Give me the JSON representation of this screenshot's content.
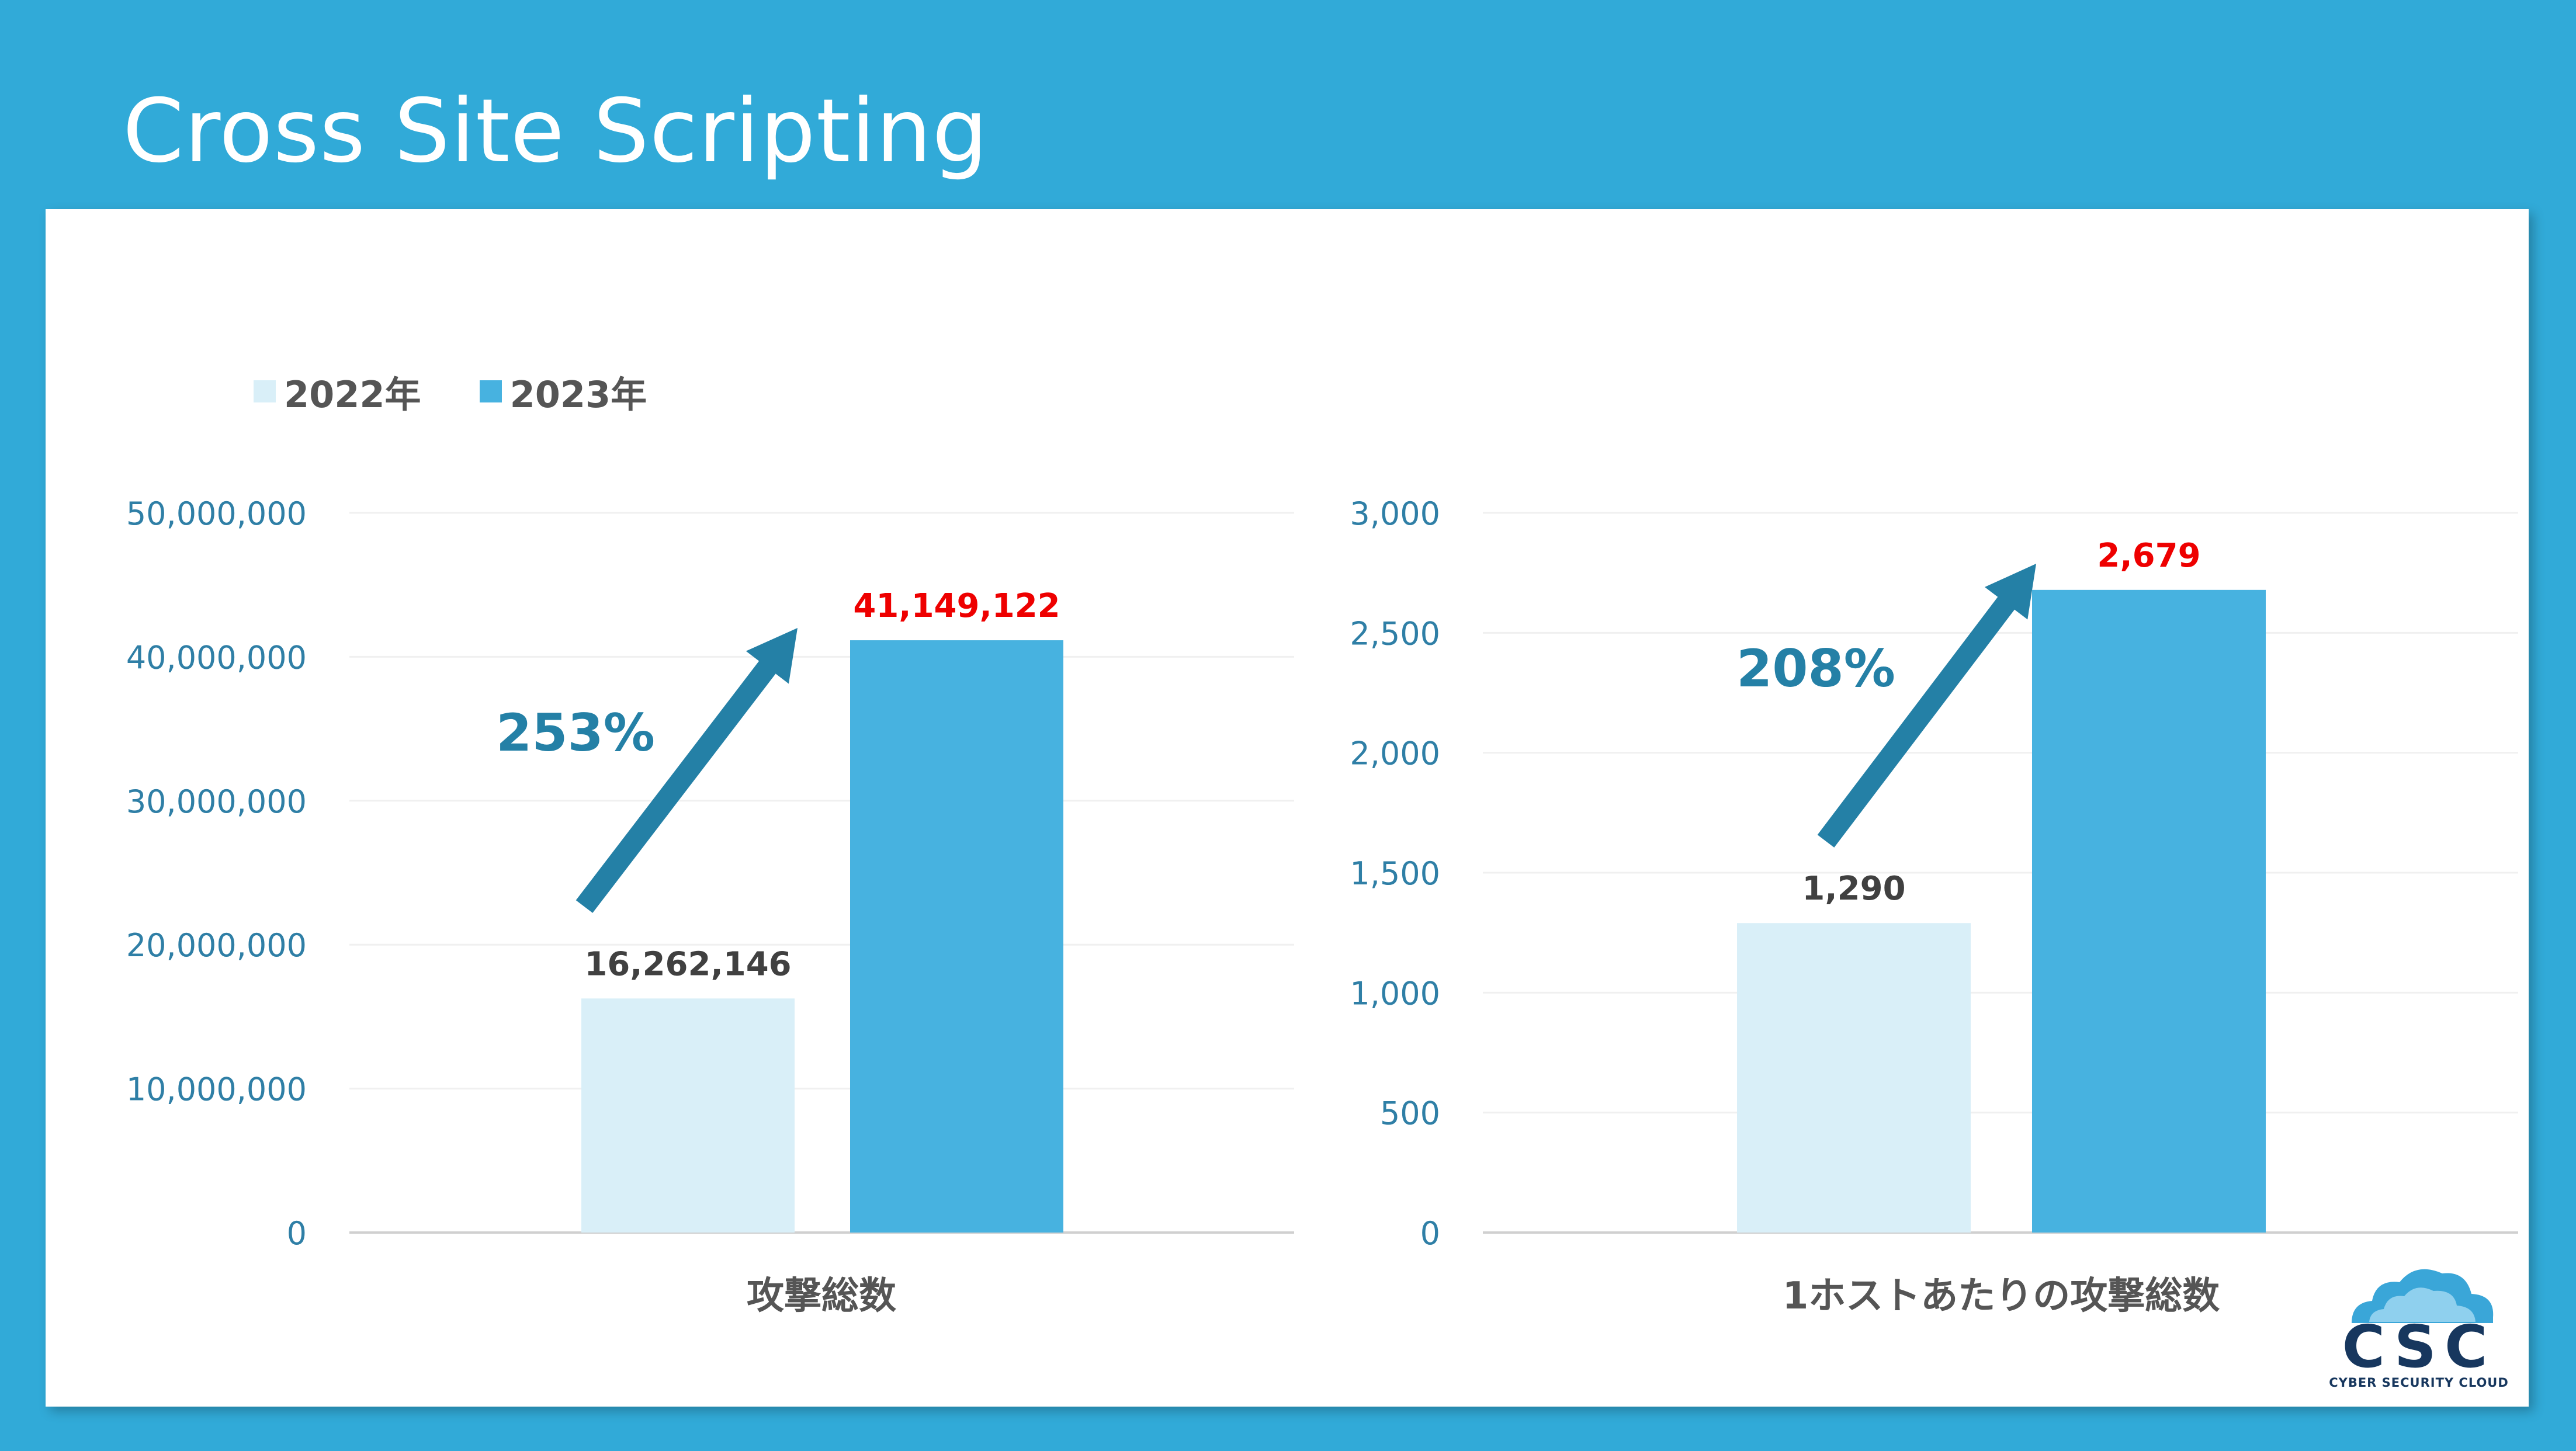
{
  "title": "Cross Site Scripting",
  "legend": [
    {
      "label": "2022年",
      "color": "#d9eff8"
    },
    {
      "label": "2023年",
      "color": "#47b2e0"
    }
  ],
  "colors": {
    "accent_arrow": "#2480a6",
    "axis_tick": "#2f7fa6",
    "data_label_2022": "#404040",
    "data_label_2023": "#ee0000",
    "axis_title": "#555555"
  },
  "logo": {
    "text": "CSC",
    "caption": "CYBER SECURITY CLOUD",
    "icon": "cloud-icon"
  },
  "chart_data": [
    {
      "type": "bar",
      "categories": [
        "攻撃総数"
      ],
      "series": [
        {
          "name": "2022年",
          "values": [
            16262146
          ],
          "labels": [
            "16,262,146"
          ]
        },
        {
          "name": "2023年",
          "values": [
            41149122
          ],
          "labels": [
            "41,149,122"
          ]
        }
      ],
      "ylim": [
        0,
        50000000
      ],
      "yticks": [
        "0",
        "10,000,000",
        "20,000,000",
        "30,000,000",
        "40,000,000",
        "50,000,000"
      ],
      "annotation": "253%",
      "grid": true
    },
    {
      "type": "bar",
      "categories": [
        "1ホストあたりの攻撃総数"
      ],
      "series": [
        {
          "name": "2022年",
          "values": [
            1290
          ],
          "labels": [
            "1,290"
          ]
        },
        {
          "name": "2023年",
          "values": [
            2679
          ],
          "labels": [
            "2,679"
          ]
        }
      ],
      "ylim": [
        0,
        3000
      ],
      "yticks": [
        "0",
        "500",
        "1,000",
        "1,500",
        "2,000",
        "2,500",
        "3,000"
      ],
      "annotation": "208%",
      "grid": true
    }
  ]
}
